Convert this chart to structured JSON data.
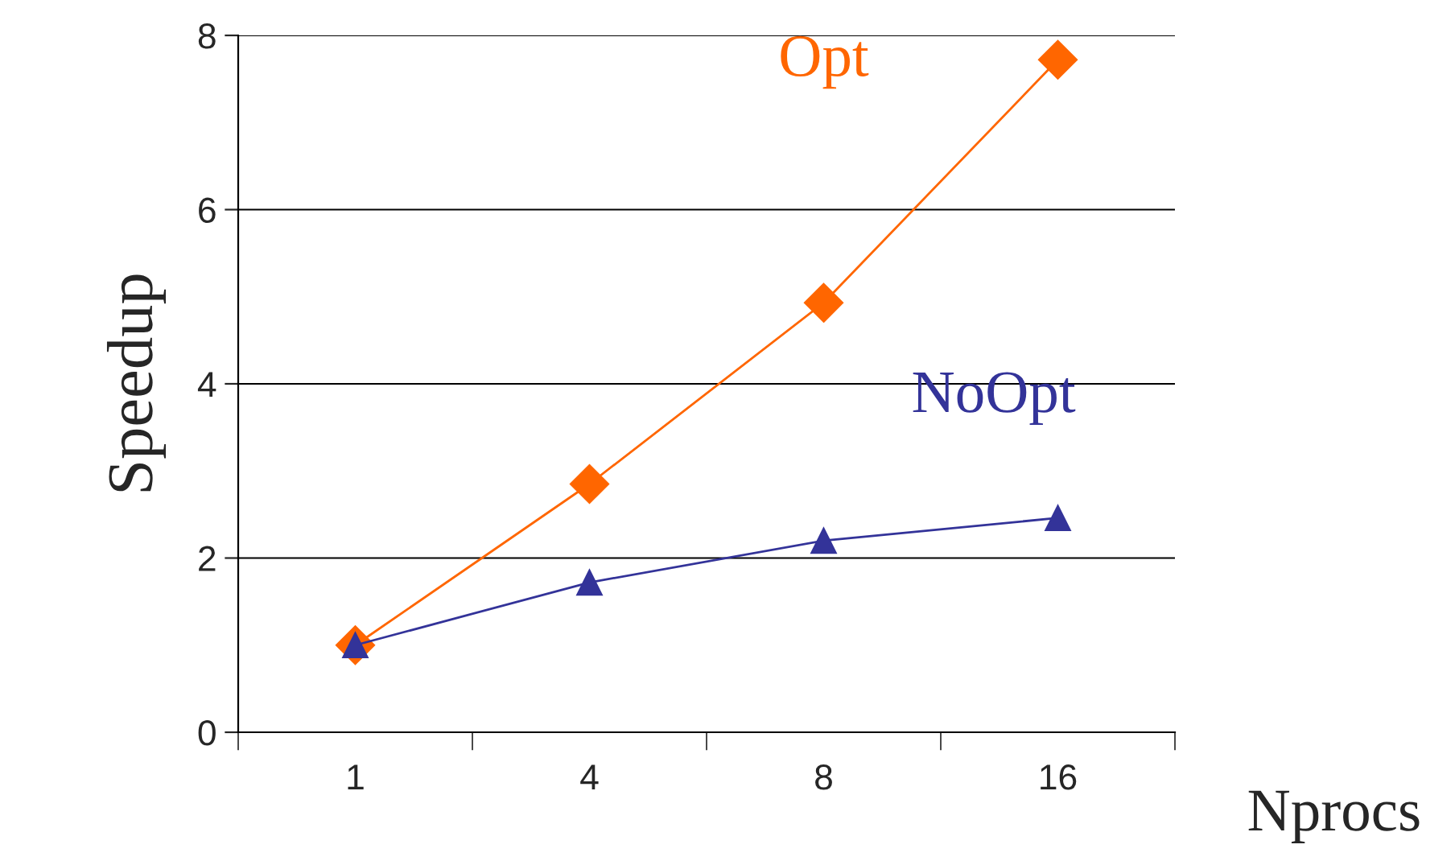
{
  "chart_data": {
    "type": "line",
    "xlabel": "Nprocs",
    "ylabel": "Speedup",
    "categories": [
      "1",
      "4",
      "8",
      "16"
    ],
    "series": [
      {
        "name": "Opt",
        "color": "#ff6600",
        "marker": "diamond",
        "values": [
          1.0,
          2.85,
          4.93,
          7.72
        ]
      },
      {
        "name": "NoOpt",
        "color": "#333399",
        "marker": "triangle",
        "values": [
          1.0,
          1.72,
          2.2,
          2.46
        ]
      }
    ],
    "ylim": [
      0,
      8
    ],
    "yticks": [
      0,
      2,
      4,
      6,
      8
    ],
    "grid": "y",
    "legend": false
  }
}
